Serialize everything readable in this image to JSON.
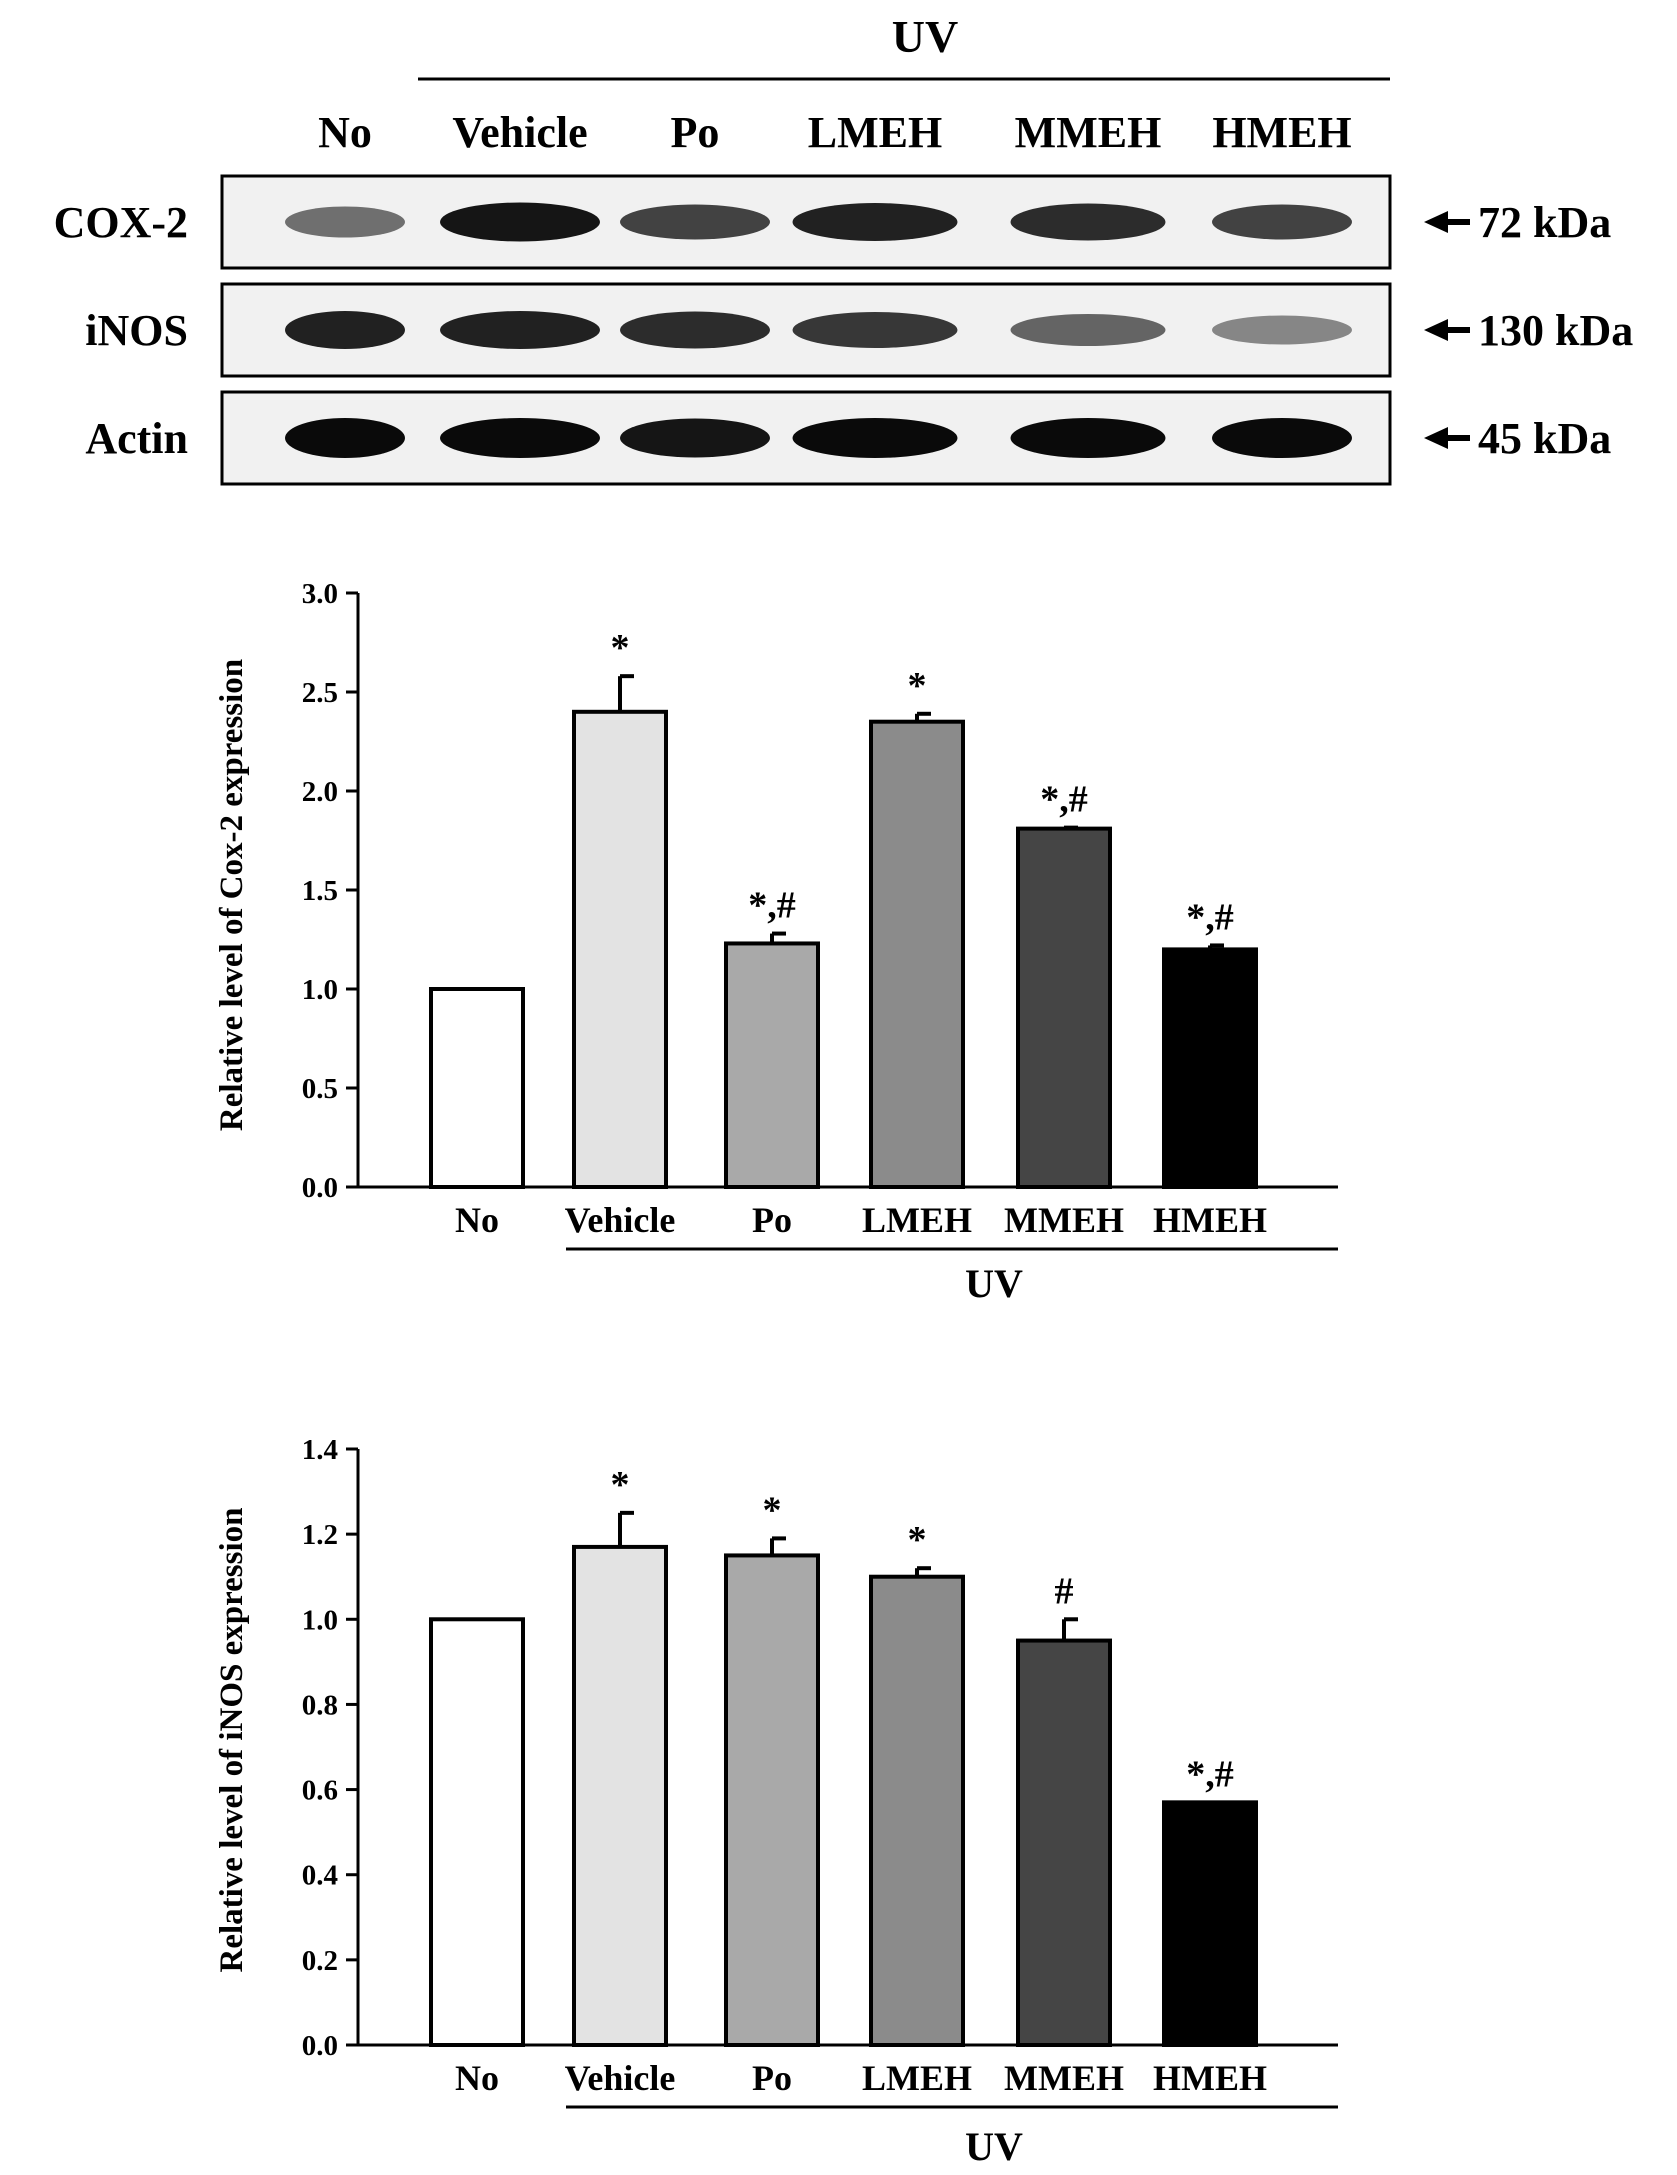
{
  "blot": {
    "treatment_label": "UV",
    "lanes": [
      "No",
      "Vehicle",
      "Po",
      "LMEH",
      "MMEH",
      "HMEH"
    ],
    "rows": [
      {
        "label": "COX-2",
        "marker": "72 kDa",
        "intensity": [
          0.55,
          0.95,
          0.75,
          0.9,
          0.85,
          0.75
        ]
      },
      {
        "label": "iNOS",
        "marker": "130 kDa",
        "intensity": [
          0.9,
          0.9,
          0.85,
          0.8,
          0.6,
          0.45
        ]
      },
      {
        "label": "Actin",
        "marker": "45 kDa",
        "intensity": [
          1.0,
          1.0,
          0.95,
          1.0,
          1.0,
          1.0
        ]
      }
    ]
  },
  "chart_data": [
    {
      "type": "bar",
      "title": "",
      "xlabel": "UV",
      "ylabel": "Relative level of Cox-2 expression",
      "ylim": [
        0,
        3.0
      ],
      "yticks": [
        "0.0",
        "0.5",
        "1.0",
        "1.5",
        "2.0",
        "2.5",
        "3.0"
      ],
      "categories": [
        "No",
        "Vehicle",
        "Po",
        "LMEH",
        "MMEH",
        "HMEH"
      ],
      "values": [
        1.0,
        2.4,
        1.23,
        2.35,
        1.81,
        1.2
      ],
      "errors": [
        0,
        0.18,
        0.05,
        0.04,
        0.005,
        0.02
      ],
      "annotations": [
        "",
        "*",
        "*,#",
        "*",
        "*,#",
        "*,#"
      ],
      "colors": [
        "#ffffff",
        "#e3e3e3",
        "#a9a9a9",
        "#8b8b8b",
        "#454545",
        "#000000"
      ],
      "grid": false
    },
    {
      "type": "bar",
      "title": "",
      "xlabel": "UV",
      "ylabel": "Relative level of iNOS expression",
      "ylim": [
        0,
        1.4
      ],
      "yticks": [
        "0.0",
        "0.2",
        "0.4",
        "0.6",
        "0.8",
        "1.0",
        "1.2",
        "1.4"
      ],
      "categories": [
        "No",
        "Vehicle",
        "Po",
        "LMEH",
        "MMEH",
        "HMEH"
      ],
      "values": [
        1.0,
        1.17,
        1.15,
        1.1,
        0.95,
        0.57
      ],
      "errors": [
        0,
        0.08,
        0.04,
        0.02,
        0.05,
        0
      ],
      "annotations": [
        "",
        "*",
        "*",
        "*",
        "#",
        "*,#"
      ],
      "colors": [
        "#ffffff",
        "#e3e3e3",
        "#a9a9a9",
        "#8b8b8b",
        "#454545",
        "#000000"
      ],
      "grid": false
    }
  ]
}
